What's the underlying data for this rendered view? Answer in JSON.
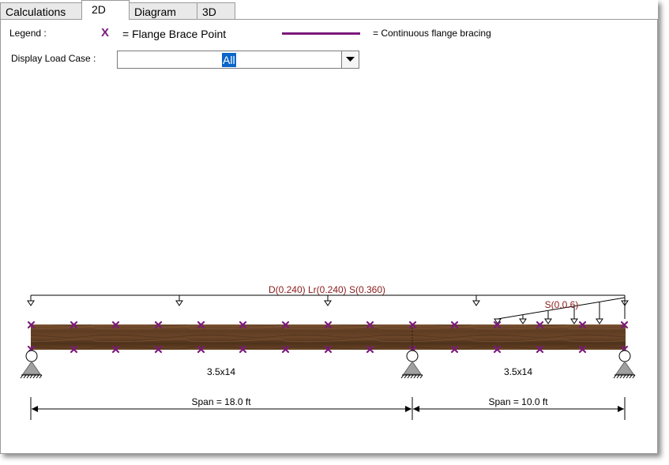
{
  "tabs": [
    {
      "label": "Calculations"
    },
    {
      "label": "2D"
    },
    {
      "label": "Diagram"
    },
    {
      "label": "3D"
    }
  ],
  "legend": {
    "label": "Legend :",
    "brace_symbol": "X",
    "brace_text": "= Flange Brace Point",
    "continuous_text": "= Continuous flange bracing",
    "brace_color": "#7b1a7b"
  },
  "load_case": {
    "label": "Display Load Case :",
    "selected": "All"
  },
  "beam": {
    "load_label": "D(0.240) Lr(0.240) S(0.360)",
    "snow_label": "S(0,0.6)",
    "section_left": "3.5x14",
    "section_right": "3.5x14",
    "span_left": "Span = 18.0 ft",
    "span_right": "Span = 10.0 ft",
    "snow_label_color": "#8b1a1a"
  }
}
